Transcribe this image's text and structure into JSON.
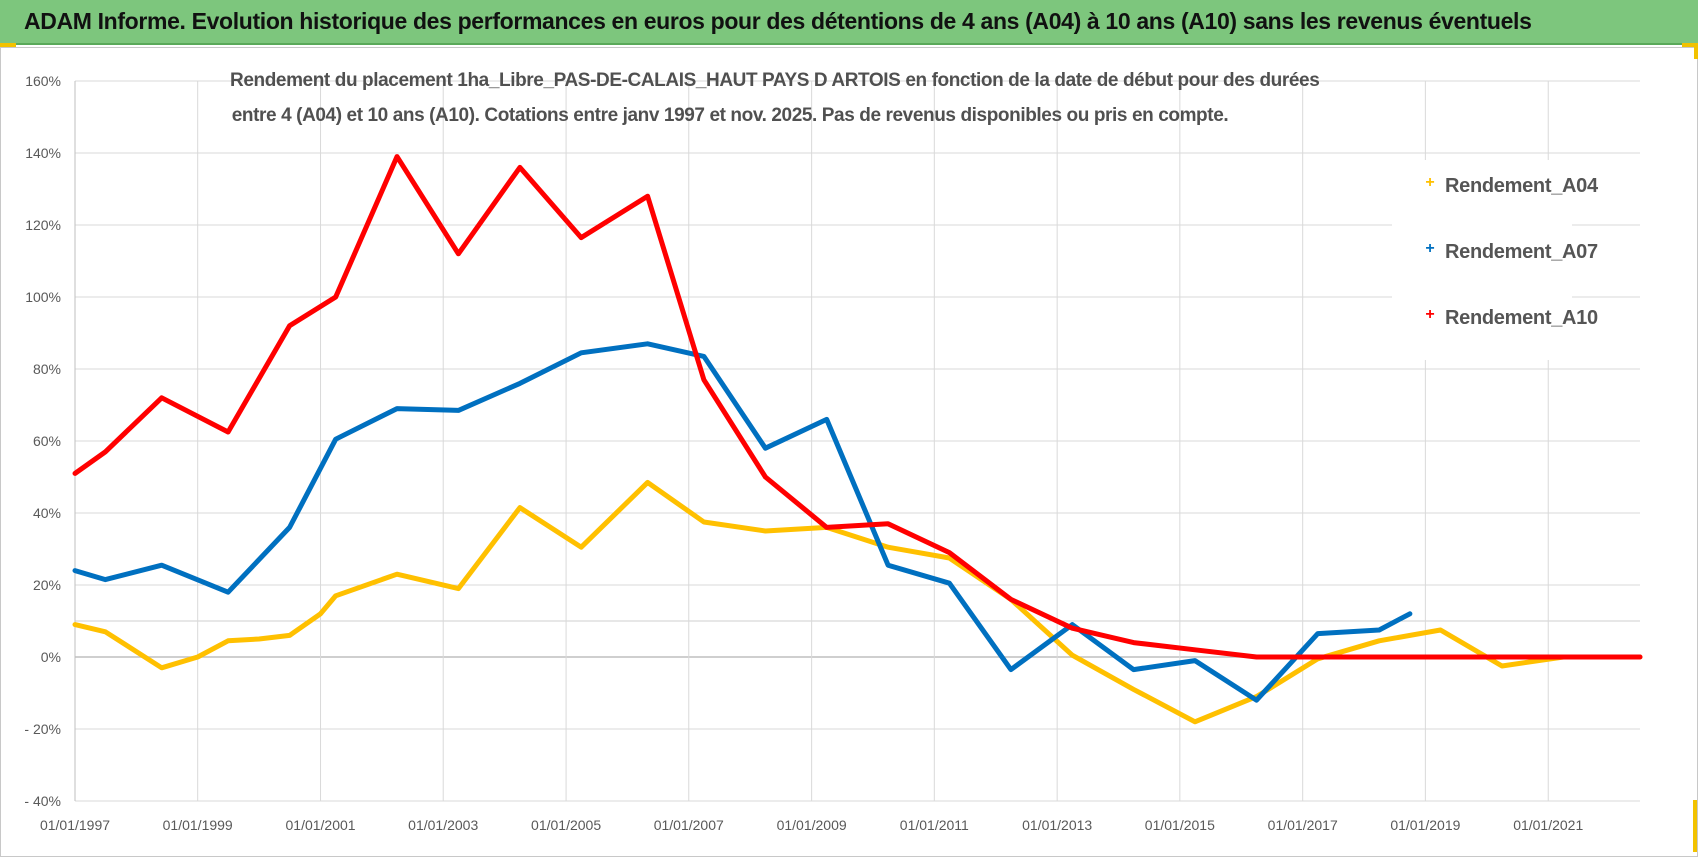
{
  "header": {
    "title": "ADAM Informe. Evolution historique des performances en euros pour des détentions de 4 ans (A04) à 10 ans (A10) sans les revenus éventuels"
  },
  "chart_data": {
    "type": "line",
    "title_line1": "Rendement du placement 1ha_Libre_PAS-DE-CALAIS_HAUT PAYS D ARTOIS en fonction de la date de début pour des durées",
    "title_line2": "entre 4 (A04) et 10 ans (A10).  Cotations entre janv 1997 et  nov. 2025.  Pas de revenus disponibles ou pris en compte.",
    "xlabel": "",
    "ylabel": "",
    "xlim": [
      "01/01/1997",
      "01/07/2022"
    ],
    "ylim": [
      -40,
      160
    ],
    "y_unit": "%",
    "y_ticks": [
      "160%",
      "140%",
      "120%",
      "100%",
      "80%",
      "60%",
      "40%",
      "20%",
      "0%",
      "- 20%",
      "- 40%"
    ],
    "x_ticks": [
      "01/01/1997",
      "01/01/1999",
      "01/01/2001",
      "01/01/2003",
      "01/01/2005",
      "01/01/2007",
      "01/01/2009",
      "01/01/2011",
      "01/01/2013",
      "01/01/2015",
      "01/01/2017",
      "01/01/2019",
      "01/01/2021"
    ],
    "grid": true,
    "legend_position": "right",
    "series": [
      {
        "name": "Rendement_A04",
        "color": "#ffc000",
        "points": [
          [
            "01/01/1997",
            9
          ],
          [
            "01/07/1997",
            7
          ],
          [
            "01/06/1998",
            -3
          ],
          [
            "01/01/1999",
            0
          ],
          [
            "01/07/1999",
            4.5
          ],
          [
            "01/01/2000",
            5
          ],
          [
            "01/07/2000",
            6
          ],
          [
            "01/01/2001",
            12
          ],
          [
            "01/04/2001",
            17
          ],
          [
            "01/04/2002",
            23
          ],
          [
            "01/04/2003",
            19
          ],
          [
            "01/04/2004",
            41.5
          ],
          [
            "01/04/2005",
            30.5
          ],
          [
            "01/05/2006",
            48.5
          ],
          [
            "01/04/2007",
            37.5
          ],
          [
            "01/04/2008",
            35
          ],
          [
            "01/04/2009",
            36
          ],
          [
            "01/04/2010",
            30.5
          ],
          [
            "01/04/2011",
            27.5
          ],
          [
            "01/04/2012",
            16
          ],
          [
            "01/04/2013",
            0.5
          ],
          [
            "01/04/2014",
            -9
          ],
          [
            "01/04/2015",
            -18
          ],
          [
            "01/04/2016",
            -11
          ],
          [
            "01/04/2017",
            -0.5
          ],
          [
            "01/04/2018",
            4.5
          ],
          [
            "01/04/2019",
            7.5
          ],
          [
            "01/04/2020",
            -2.5
          ],
          [
            "01/04/2021",
            0
          ],
          [
            "01/07/2022",
            0
          ]
        ]
      },
      {
        "name": "Rendement_A07",
        "color": "#0070c0",
        "points": [
          [
            "01/01/1997",
            24
          ],
          [
            "01/07/1997",
            21.5
          ],
          [
            "01/06/1998",
            25.5
          ],
          [
            "01/07/1999",
            18
          ],
          [
            "01/07/2000",
            36
          ],
          [
            "01/04/2001",
            60.5
          ],
          [
            "01/04/2002",
            69
          ],
          [
            "01/04/2003",
            68.5
          ],
          [
            "01/04/2004",
            76
          ],
          [
            "01/04/2005",
            84.5
          ],
          [
            "01/05/2006",
            87
          ],
          [
            "01/04/2007",
            83.5
          ],
          [
            "01/04/2008",
            58
          ],
          [
            "01/04/2009",
            66
          ],
          [
            "01/04/2010",
            25.5
          ],
          [
            "01/04/2011",
            20.5
          ],
          [
            "01/04/2012",
            -3.5
          ],
          [
            "01/04/2013",
            9
          ],
          [
            "01/04/2014",
            -3.5
          ],
          [
            "01/04/2015",
            -1
          ],
          [
            "01/04/2016",
            -12
          ],
          [
            "01/04/2017",
            6.5
          ],
          [
            "01/04/2018",
            7.5
          ],
          [
            "01/10/2018",
            12
          ]
        ]
      },
      {
        "name": "Rendement_A10",
        "color": "#ff0000",
        "points": [
          [
            "01/01/1997",
            51
          ],
          [
            "01/07/1997",
            57
          ],
          [
            "01/06/1998",
            72
          ],
          [
            "01/07/1999",
            62.5
          ],
          [
            "01/07/2000",
            92
          ],
          [
            "01/04/2001",
            100
          ],
          [
            "01/04/2002",
            139
          ],
          [
            "01/04/2003",
            112
          ],
          [
            "01/04/2004",
            136
          ],
          [
            "01/04/2005",
            116.5
          ],
          [
            "01/05/2006",
            128
          ],
          [
            "01/04/2007",
            77
          ],
          [
            "01/04/2008",
            50
          ],
          [
            "01/04/2009",
            36
          ],
          [
            "01/04/2010",
            37
          ],
          [
            "01/04/2011",
            29
          ],
          [
            "01/04/2012",
            16
          ],
          [
            "01/04/2013",
            8
          ],
          [
            "01/04/2014",
            4
          ],
          [
            "01/04/2015",
            2
          ],
          [
            "01/04/2016",
            0
          ],
          [
            "01/04/2017",
            0
          ],
          [
            "01/04/2018",
            0
          ],
          [
            "01/04/2019",
            0
          ],
          [
            "01/04/2020",
            0
          ],
          [
            "01/04/2021",
            0
          ],
          [
            "01/07/2022",
            0
          ]
        ]
      }
    ]
  }
}
